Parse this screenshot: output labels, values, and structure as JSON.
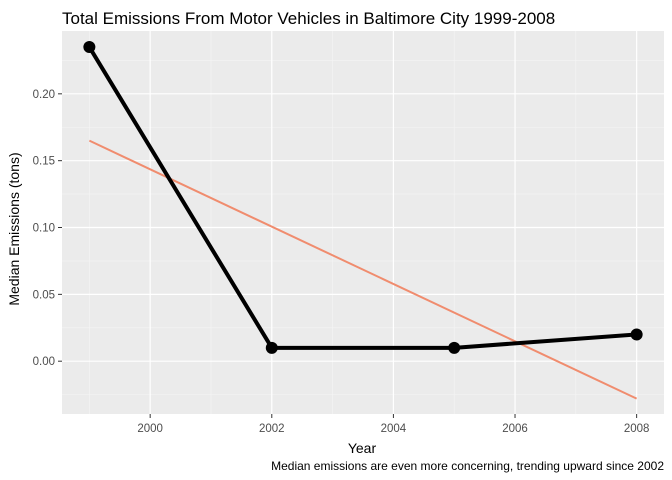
{
  "chart_data": {
    "type": "line",
    "title": "Total Emissions From Motor Vehicles in Baltimore City 1999-2008",
    "xlabel": "Year",
    "ylabel": "Median Emissions  (tons)",
    "caption": "Median emissions are even more concerning, trending upward since 2002",
    "xlim": [
      1998.55,
      2008.45
    ],
    "ylim": [
      -0.0395,
      0.247
    ],
    "x_ticks": [
      2000,
      2002,
      2004,
      2006,
      2008
    ],
    "y_ticks": [
      0.0,
      0.05,
      0.1,
      0.15,
      0.2
    ],
    "y_tick_labels": [
      "0.00",
      "0.05",
      "0.10",
      "0.15",
      "0.20"
    ],
    "grid": true,
    "series": [
      {
        "name": "Median Emissions",
        "color": "#000000",
        "x": [
          1999,
          2002,
          2005,
          2008
        ],
        "values": [
          0.235,
          0.01,
          0.01,
          0.02
        ]
      },
      {
        "name": "Linear trend",
        "color": "#F08C6E",
        "x": [
          1999,
          2008
        ],
        "values": [
          0.165,
          -0.028
        ]
      }
    ],
    "colors": {
      "panel_background": "#EBEBEB",
      "grid_major": "#FFFFFF",
      "grid_minor": "#F5F5F5",
      "tick_label": "#4D4D4D"
    }
  }
}
